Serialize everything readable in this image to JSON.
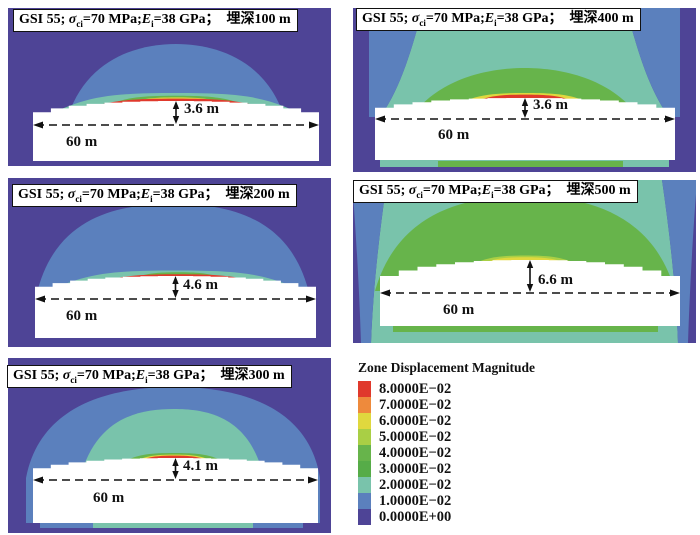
{
  "palette": {
    "p8": "#e0392c",
    "p7": "#ee8a3c",
    "p6": "#e0d83e",
    "p5": "#a9cf45",
    "p4": "#67b44b",
    "p3": "#56ac48",
    "p2": "#79c3ab",
    "p1": "#5b80bd",
    "p0": "#4e4496",
    "white": "#ffffff",
    "ink": "#111111"
  },
  "title_parts": {
    "gsi": "GSI 55; ",
    "sigma": "σ",
    "sigma_sub": "ci",
    "sigma_eq": "=70 MPa;",
    "e": "E",
    "e_sub": "i",
    "e_eq": "=38 GPa；"
  },
  "panels": [
    {
      "key": "p100",
      "depth_label": "埋深100 m",
      "arch_label": "3.6 m",
      "span_label": "60 m"
    },
    {
      "key": "p400",
      "depth_label": "埋深400 m",
      "arch_label": "3.6 m",
      "span_label": "60 m"
    },
    {
      "key": "p200",
      "depth_label": "埋深200 m",
      "arch_label": "4.6 m",
      "span_label": "60 m"
    },
    {
      "key": "p500",
      "depth_label": "埋深500 m",
      "arch_label": "6.6 m",
      "span_label": "60 m"
    },
    {
      "key": "p300",
      "depth_label": "埋深300 m",
      "arch_label": "4.1 m",
      "span_label": "60 m"
    }
  ],
  "legend": {
    "title": "Zone Displacement Magnitude",
    "entries": [
      {
        "label": "8.0000E−02",
        "color": "#e0392c"
      },
      {
        "label": "7.0000E−02",
        "color": "#ee8a3c"
      },
      {
        "label": "6.0000E−02",
        "color": "#e0d83e"
      },
      {
        "label": "5.0000E−02",
        "color": "#a9cf45"
      },
      {
        "label": "4.0000E−02",
        "color": "#67b44b"
      },
      {
        "label": "3.0000E−02",
        "color": "#56ac48"
      },
      {
        "label": "2.0000E−02",
        "color": "#79c3ab"
      },
      {
        "label": "1.0000E−02",
        "color": "#5b80bd"
      },
      {
        "label": "0.0000E+00",
        "color": "#4e4496"
      }
    ]
  },
  "chart_data": {
    "type": "heatmap",
    "title": "Zone displacement magnitude contours above a 60 m span cavern at different burial depths",
    "common_parameters": {
      "GSI": 55,
      "sigma_ci_MPa": 70,
      "E_i_GPa": 38,
      "span_m": 60
    },
    "series": [
      {
        "depth_m": 100,
        "collapse_arch_height_m": 3.6
      },
      {
        "depth_m": 200,
        "collapse_arch_height_m": 4.6
      },
      {
        "depth_m": 300,
        "collapse_arch_height_m": 4.1
      },
      {
        "depth_m": 400,
        "collapse_arch_height_m": 3.6
      },
      {
        "depth_m": 500,
        "collapse_arch_height_m": 6.6
      }
    ],
    "colorbar": {
      "title": "Zone Displacement Magnitude",
      "tick_labels": [
        "8.0000E−02",
        "7.0000E−02",
        "6.0000E−02",
        "5.0000E−02",
        "4.0000E−02",
        "3.0000E−02",
        "2.0000E−02",
        "1.0000E−02",
        "0.0000E+00"
      ],
      "colors": [
        "#e0392c",
        "#ee8a3c",
        "#e0d83e",
        "#a9cf45",
        "#67b44b",
        "#56ac48",
        "#79c3ab",
        "#5b80bd",
        "#4e4496"
      ],
      "legend_position": "bottom-right"
    },
    "grid": false
  }
}
